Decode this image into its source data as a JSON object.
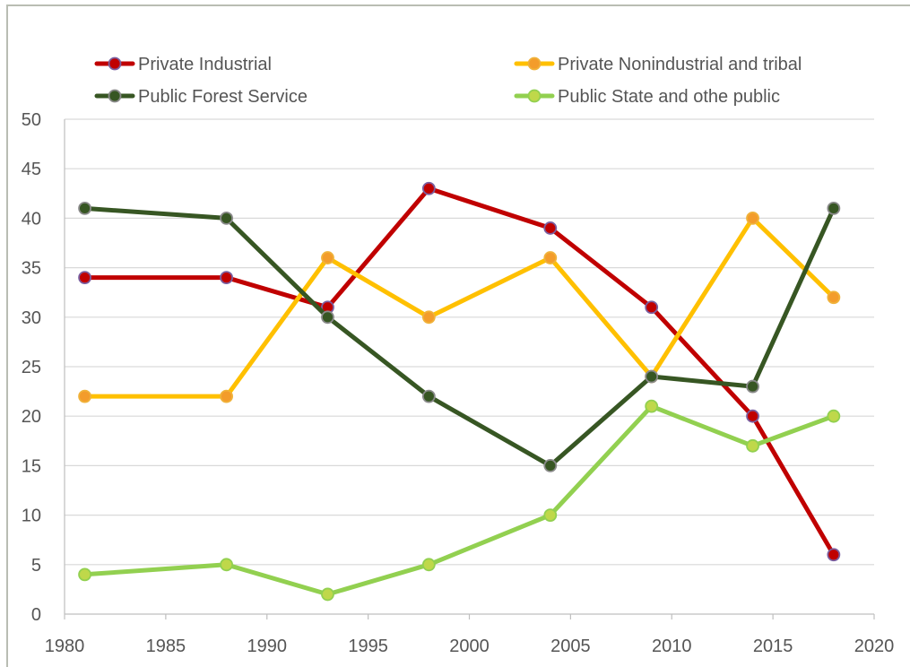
{
  "chart_data": {
    "type": "line",
    "title": "",
    "xlabel": "",
    "ylabel": "",
    "xlim": [
      1980,
      2020
    ],
    "ylim": [
      0,
      50
    ],
    "xticks": [
      1980,
      1985,
      1990,
      1995,
      2000,
      2005,
      2010,
      2015,
      2020
    ],
    "yticks": [
      0,
      5,
      10,
      15,
      20,
      25,
      30,
      35,
      40,
      45,
      50
    ],
    "grid": "horizontal",
    "legend_position": "top",
    "x": [
      1981,
      1988,
      1993,
      1998,
      2004,
      2009,
      2014,
      2018
    ],
    "series": [
      {
        "name": "Private Industrial",
        "color": "#c00000",
        "marker_color": "#c00000",
        "marker_edge": "#7a5fa0",
        "values": [
          34,
          34,
          31,
          43,
          39,
          31,
          20,
          6
        ]
      },
      {
        "name": "Private Nonindustrial and tribal",
        "color": "#ffc000",
        "marker_color": "#f39c2b",
        "marker_edge": "#f0b23a",
        "values": [
          22,
          22,
          36,
          30,
          36,
          24,
          40,
          32
        ]
      },
      {
        "name": "Public Forest Service",
        "color": "#375623",
        "marker_color": "#375623",
        "marker_edge": "#8a8a8a",
        "values": [
          41,
          40,
          30,
          22,
          15,
          24,
          23,
          41
        ]
      },
      {
        "name": "Public State and othe public",
        "color": "#92d050",
        "marker_color": "#bfd84a",
        "marker_edge": "#92d050",
        "values": [
          4,
          5,
          2,
          5,
          10,
          21,
          17,
          20
        ]
      }
    ]
  }
}
